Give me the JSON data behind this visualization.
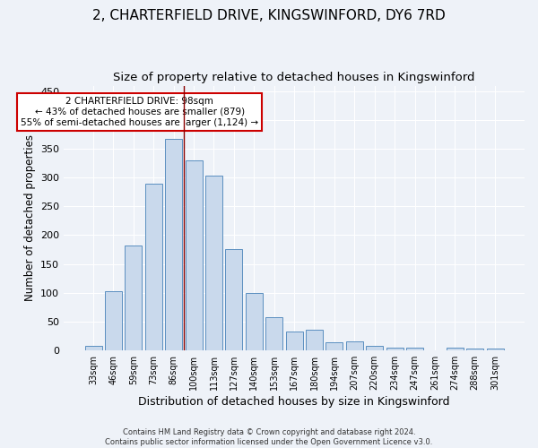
{
  "title": "2, CHARTERFIELD DRIVE, KINGSWINFORD, DY6 7RD",
  "subtitle": "Size of property relative to detached houses in Kingswinford",
  "xlabel": "Distribution of detached houses by size in Kingswinford",
  "ylabel": "Number of detached properties",
  "categories": [
    "33sqm",
    "46sqm",
    "59sqm",
    "73sqm",
    "86sqm",
    "100sqm",
    "113sqm",
    "127sqm",
    "140sqm",
    "153sqm",
    "167sqm",
    "180sqm",
    "194sqm",
    "207sqm",
    "220sqm",
    "234sqm",
    "247sqm",
    "261sqm",
    "274sqm",
    "288sqm",
    "301sqm"
  ],
  "values": [
    7,
    103,
    182,
    290,
    367,
    330,
    303,
    176,
    100,
    58,
    32,
    35,
    13,
    15,
    8,
    5,
    5,
    0,
    4,
    3,
    3
  ],
  "bar_color": "#c9d9ec",
  "bar_edge_color": "#5a8fc0",
  "vline_x_index": 4.5,
  "vline_color": "#8b0000",
  "annotation_text": "2 CHARTERFIELD DRIVE: 98sqm\n← 43% of detached houses are smaller (879)\n55% of semi-detached houses are larger (1,124) →",
  "annotation_box_color": "#ffffff",
  "annotation_box_edge": "#cc0000",
  "ylim": [
    0,
    460
  ],
  "yticks": [
    0,
    50,
    100,
    150,
    200,
    250,
    300,
    350,
    400,
    450
  ],
  "bg_color": "#eef2f8",
  "grid_color": "#ffffff",
  "footer": "Contains HM Land Registry data © Crown copyright and database right 2024.\nContains public sector information licensed under the Open Government Licence v3.0.",
  "title_fontsize": 11,
  "subtitle_fontsize": 9.5,
  "xlabel_fontsize": 9,
  "ylabel_fontsize": 8.5,
  "annotation_fontsize": 7.5
}
